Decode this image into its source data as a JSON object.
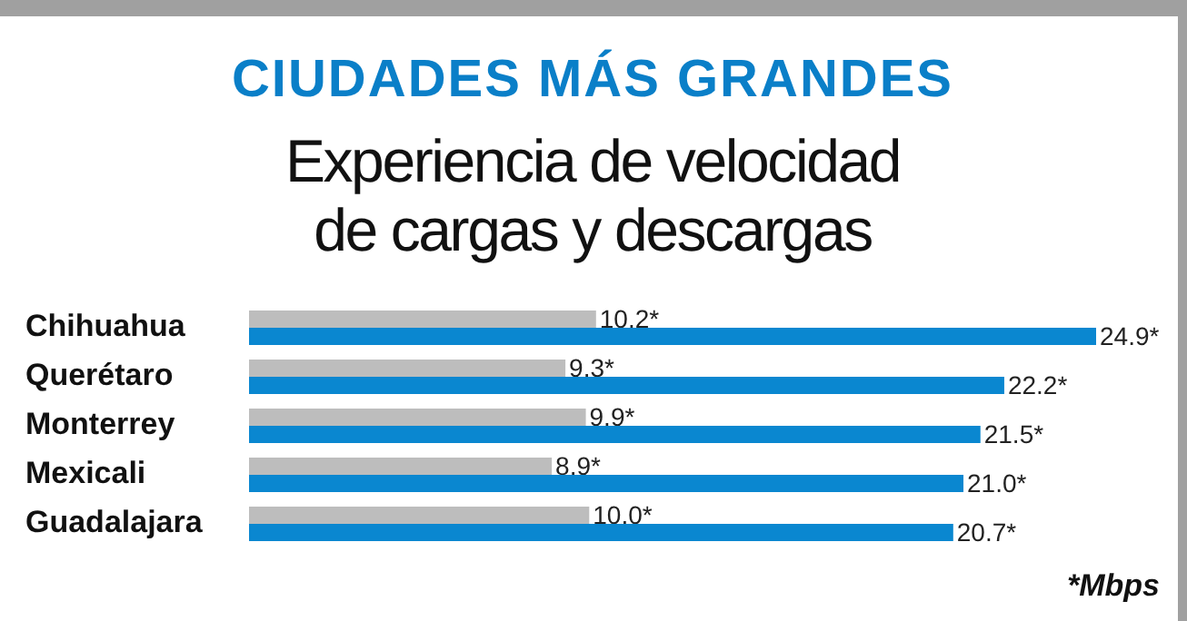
{
  "chart_data": {
    "type": "bar",
    "orientation": "horizontal",
    "title": "CIUDADES MÁS GRANDES",
    "subtitle": "Experiencia de velocidad de cargas y descargas",
    "categories": [
      "Chihuahua",
      "Querétaro",
      "Monterrey",
      "Mexicali",
      "Guadalajara"
    ],
    "series": [
      {
        "color": "#bdbdbd",
        "values": [
          10.2,
          9.3,
          9.9,
          8.9,
          10.0
        ],
        "value_labels": [
          "10.2*",
          "9.3*",
          "9.9*",
          "8.9*",
          "10.0*"
        ]
      },
      {
        "color": "#0a87d0",
        "values": [
          24.9,
          22.2,
          21.5,
          21.0,
          20.7
        ],
        "value_labels": [
          "24.9*",
          "22.2*",
          "21.5*",
          "21.0*",
          "20.7*"
        ]
      }
    ],
    "tick_labels": "y",
    "annotations": [
      "*Mbps"
    ]
  }
}
